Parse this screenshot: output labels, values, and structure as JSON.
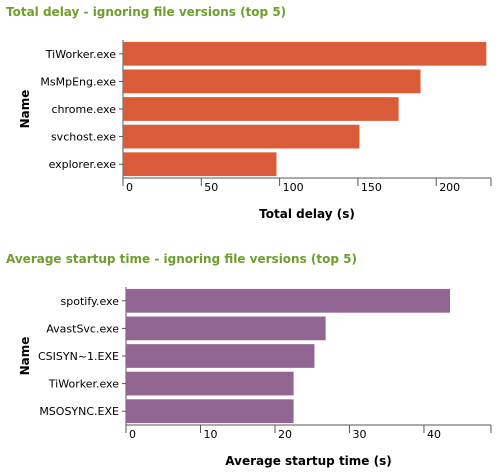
{
  "chart_data": [
    {
      "type": "bar",
      "orientation": "horizontal",
      "title": "Total delay - ignoring file versions (top 5)",
      "xlabel": "Total delay (s)",
      "ylabel": "Name",
      "categories": [
        "TiWorker.exe",
        "MsMpEng.exe",
        "chrome.exe",
        "svchost.exe",
        "explorer.exe"
      ],
      "values": [
        232,
        190,
        176,
        151,
        98
      ],
      "xlim": [
        0,
        235
      ],
      "ticks": [
        0,
        50,
        100,
        150,
        200
      ],
      "color": "#d95b38"
    },
    {
      "type": "bar",
      "orientation": "horizontal",
      "title": "Average startup time - ignoring file versions (top 5)",
      "xlabel": "Average startup time (s)",
      "ylabel": "Name",
      "categories": [
        "spotify.exe",
        "AvastSvc.exe",
        "CSISYN~1.EXE",
        "TiWorker.exe",
        "MSOSYNC.EXE"
      ],
      "values": [
        43.5,
        26.8,
        25.3,
        22.5,
        22.5
      ],
      "xlim": [
        0,
        49
      ],
      "ticks": [
        0,
        10,
        20,
        30,
        40
      ],
      "color": "#926693"
    }
  ]
}
